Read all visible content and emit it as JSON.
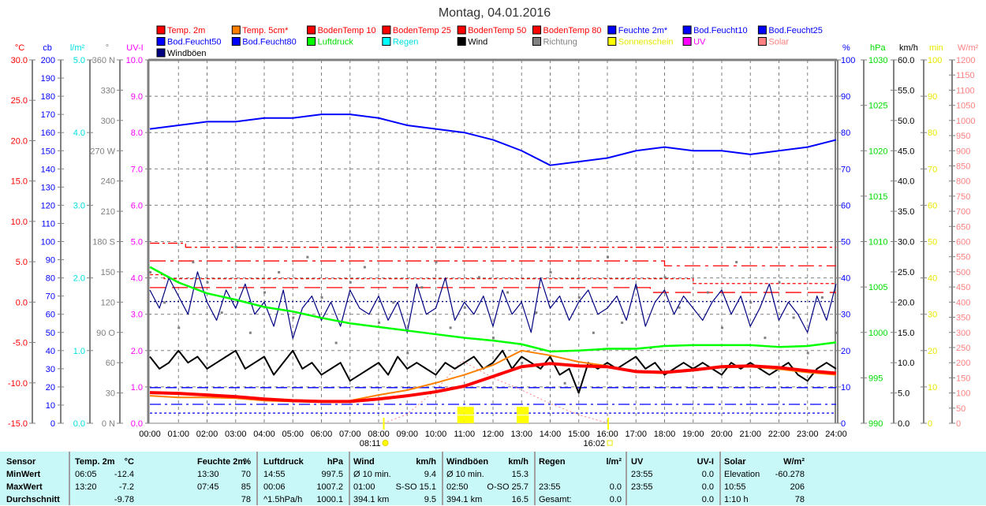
{
  "title": "Montag, 04.01.2016",
  "chart_data": {
    "type": "line",
    "title": "Montag, 04.01.2016",
    "legend": [
      {
        "label": "Temp. 2m",
        "color": "#ff0000",
        "text_color": "#ff0000"
      },
      {
        "label": "Temp. 5cm*",
        "color": "#ff8000",
        "text_color": "#ff0000"
      },
      {
        "label": "BodenTemp 10",
        "color": "#ff0000",
        "text_color": "#ff0000"
      },
      {
        "label": "BodenTemp 25",
        "color": "#ff0000",
        "text_color": "#ff0000"
      },
      {
        "label": "BodenTemp 50",
        "color": "#ff0000",
        "text_color": "#ff0000"
      },
      {
        "label": "BodenTemp 80",
        "color": "#ff0000",
        "text_color": "#ff0000"
      },
      {
        "label": "Feuchte 2m*",
        "color": "#0000ff",
        "text_color": "#0000ff"
      },
      {
        "label": "Bod.Feucht10",
        "color": "#0000ff",
        "text_color": "#0000ff"
      },
      {
        "label": "Bod.Feucht25",
        "color": "#0000ff",
        "text_color": "#0000ff"
      },
      {
        "label": "Bod.Feucht50",
        "color": "#0000ff",
        "text_color": "#0000ff"
      },
      {
        "label": "Bod.Feucht80",
        "color": "#0000ff",
        "text_color": "#0000ff"
      },
      {
        "label": "Luftdruck",
        "color": "#00ff00",
        "text_color": "#00dd00"
      },
      {
        "label": "Regen",
        "color": "#00ffff",
        "text_color": "#00e0e0"
      },
      {
        "label": "Wind",
        "color": "#000000",
        "text_color": "#000000"
      },
      {
        "label": "Richtung",
        "color": "#808080",
        "text_color": "#808080"
      },
      {
        "label": "Sonnenschein",
        "color": "#ffff00",
        "text_color": "#e8e800"
      },
      {
        "label": "UV",
        "color": "#ff00ff",
        "text_color": "#ff00ff"
      },
      {
        "label": "Solar",
        "color": "#ff8080",
        "text_color": "#ff8080"
      },
      {
        "label": "Windböen",
        "color": "#000080",
        "text_color": "#000000"
      }
    ],
    "axes_left": [
      {
        "unit": "°C",
        "color": "#ff0000",
        "min": -15,
        "max": 30,
        "ticks": [
          "30.0",
          "25.0",
          "20.0",
          "15.0",
          "10.0",
          "5.0",
          "0.0",
          "-5.0",
          "-10.0",
          "-15.0"
        ]
      },
      {
        "unit": "cb",
        "color": "#0000ff",
        "min": 0,
        "max": 200,
        "ticks": [
          "200",
          "190",
          "180",
          "170",
          "160",
          "150",
          "140",
          "130",
          "120",
          "110",
          "100",
          "90",
          "80",
          "70",
          "60",
          "50",
          "40",
          "30",
          "20",
          "10",
          "0"
        ]
      },
      {
        "unit": "l/m²",
        "color": "#00e0e0",
        "min": 0,
        "max": 5,
        "ticks": [
          "5.0",
          "4.0",
          "3.0",
          "2.0",
          "1.0",
          "0.0"
        ]
      },
      {
        "unit": "°",
        "color": "#808080",
        "min": 0,
        "max": 360,
        "ticks": [
          "360 N",
          "330",
          "300",
          "270 W",
          "240",
          "210",
          "180 S",
          "150",
          "120",
          "90  O",
          "60",
          "30",
          "0 N"
        ]
      },
      {
        "unit": "UV-I",
        "color": "#ff00ff",
        "min": 0,
        "max": 10,
        "ticks": [
          "10.0",
          "9.0",
          "8.0",
          "7.0",
          "6.0",
          "5.0",
          "4.0",
          "3.0",
          "2.0",
          "1.0",
          "0.0"
        ]
      }
    ],
    "axes_right": [
      {
        "unit": "%",
        "color": "#0000ff",
        "min": 0,
        "max": 100,
        "ticks": [
          "100",
          "90",
          "80",
          "70",
          "60",
          "50",
          "40",
          "30",
          "20",
          "10",
          "0"
        ]
      },
      {
        "unit": "hPa",
        "color": "#00dd00",
        "min": 990,
        "max": 1030,
        "ticks": [
          "1030",
          "1025",
          "1020",
          "1015",
          "1010",
          "1005",
          "1000",
          "995",
          "990"
        ]
      },
      {
        "unit": "km/h",
        "color": "#000000",
        "min": 0,
        "max": 60,
        "ticks": [
          "60.0",
          "55.0",
          "50.0",
          "45.0",
          "40.0",
          "35.0",
          "30.0",
          "25.0",
          "20.0",
          "15.0",
          "10.0",
          "5.0",
          "0.0"
        ]
      },
      {
        "unit": "min",
        "color": "#e8e800",
        "min": 0,
        "max": 100,
        "ticks": [
          "100",
          "90",
          "80",
          "70",
          "60",
          "50",
          "40",
          "30",
          "20",
          "10",
          "0"
        ]
      },
      {
        "unit": "W/m²",
        "color": "#ff8080",
        "min": 0,
        "max": 1200,
        "ticks": [
          "1200",
          "1150",
          "1100",
          "1050",
          "1000",
          "950",
          "900",
          "850",
          "800",
          "750",
          "700",
          "650",
          "600",
          "550",
          "500",
          "450",
          "400",
          "350",
          "300",
          "250",
          "200",
          "150",
          "100",
          "50",
          "0"
        ]
      }
    ],
    "x_ticks": [
      "00:00",
      "01:00",
      "02:00",
      "03:00",
      "04:00",
      "05:00",
      "06:00",
      "07:00",
      "08:00",
      "09:00",
      "10:00",
      "11:00",
      "12:00",
      "13:00",
      "14:00",
      "15:00",
      "16:00",
      "17:00",
      "18:00",
      "19:00",
      "20:00",
      "21:00",
      "22:00",
      "23:00",
      "24:00"
    ],
    "xlim": [
      0,
      24
    ],
    "sunrise": {
      "label": "08:11",
      "hour": 8.18
    },
    "sunset": {
      "label": "16:02",
      "hour": 16.03
    },
    "series": {
      "temp_2m": {
        "axis": "°C",
        "color": "#ff0000",
        "hours_step": 1,
        "values": [
          -11.2,
          -11.3,
          -11.5,
          -11.7,
          -12.0,
          -12.2,
          -12.3,
          -12.3,
          -12.0,
          -11.6,
          -11.1,
          -10.4,
          -9.2,
          -8.0,
          -7.6,
          -7.9,
          -8.0,
          -8.6,
          -8.7,
          -8.4,
          -8.0,
          -7.9,
          -8.1,
          -8.5,
          -8.8
        ]
      },
      "temp_5cm": {
        "axis": "°C",
        "color": "#ff8000",
        "hours_step": 1,
        "values": [
          -11.6,
          -11.8,
          -11.8,
          -11.9,
          -12.2,
          -12.3,
          -12.3,
          -12.2,
          -11.5,
          -10.9,
          -10.0,
          -9.0,
          -7.8,
          -6.0,
          -6.6,
          -7.4,
          -7.9,
          -8.7,
          -8.8,
          -8.5,
          -8.1,
          -8.0,
          -8.3,
          -8.7,
          -9.0
        ]
      },
      "feuchte_2m": {
        "axis": "%",
        "color": "#0000ff",
        "hours_step": 1,
        "values": [
          81,
          82,
          83,
          83,
          84,
          84,
          85,
          85,
          84,
          82,
          81,
          80,
          78,
          75,
          71,
          72,
          73,
          75,
          76,
          75,
          75,
          74,
          75,
          76,
          78
        ]
      },
      "luftdruck": {
        "axis": "hPa",
        "color": "#00ff00",
        "hours_step": 1,
        "values": [
          1007.2,
          1005.5,
          1004.3,
          1003.6,
          1002.8,
          1002.3,
          1001.6,
          1001.0,
          1000.6,
          1000.2,
          999.8,
          999.4,
          999.1,
          998.7,
          997.9,
          998.0,
          998.2,
          998.2,
          998.5,
          998.6,
          998.6,
          998.6,
          998.4,
          998.5,
          998.9
        ]
      },
      "wind": {
        "axis": "km/h",
        "color": "#000000",
        "hours_step": 0.3333,
        "values": [
          11,
          9,
          10,
          12,
          10,
          11,
          9,
          10,
          11,
          12,
          9,
          10,
          11,
          8,
          10,
          12,
          9,
          10,
          8,
          9,
          10,
          7,
          8,
          9,
          10,
          8,
          11,
          9,
          10,
          9,
          8,
          10,
          9,
          10,
          11,
          9,
          10,
          12,
          9,
          11,
          10,
          9,
          11,
          8,
          9,
          5,
          10,
          9,
          10,
          9,
          10,
          11,
          9,
          10,
          8,
          9,
          10,
          9,
          10,
          9,
          8,
          10,
          9,
          10,
          9,
          8,
          9,
          10,
          8,
          7,
          9,
          10,
          9
        ]
      },
      "windboeen": {
        "axis": "km/h",
        "color": "#000080",
        "hours_step": 0.3333,
        "values": [
          22,
          19,
          24,
          21,
          18,
          25,
          20,
          17,
          22,
          19,
          23,
          18,
          20,
          16,
          22,
          14,
          19,
          21,
          17,
          20,
          16,
          22,
          19,
          18,
          21,
          17,
          20,
          15,
          23,
          18,
          19,
          24,
          17,
          20,
          18,
          21,
          16,
          22,
          18,
          20,
          15,
          24,
          19,
          21,
          17,
          20,
          22,
          18,
          19,
          21,
          17,
          23,
          16,
          20,
          22,
          18,
          21,
          19,
          17,
          20,
          22,
          18,
          21,
          16,
          19,
          23,
          17,
          20,
          18,
          15,
          21,
          17,
          23
        ]
      },
      "richtung": {
        "axis": "°",
        "color": "#808080",
        "hours_step": 0.5,
        "values": [
          150,
          120,
          95,
          160,
          140,
          110,
          175,
          90,
          130,
          150,
          105,
          165,
          125,
          80,
          140,
          155,
          100,
          120,
          70,
          135,
          160,
          95,
          115,
          145,
          85,
          130,
          60,
          110,
          150,
          40,
          125,
          90,
          165,
          100,
          135,
          75,
          145,
          115,
          55,
          130,
          95,
          160,
          120,
          85,
          140,
          105,
          70,
          125,
          90
        ]
      },
      "solar": {
        "axis": "W/m²",
        "color": "#ff8080",
        "points": [
          [
            8.18,
            0
          ],
          [
            9,
            30
          ],
          [
            10,
            110
          ],
          [
            10.92,
            206
          ],
          [
            12,
            150
          ],
          [
            13,
            110
          ],
          [
            14,
            65
          ],
          [
            15,
            28
          ],
          [
            16.03,
            0
          ]
        ]
      },
      "sonnenschein": {
        "axis": "min",
        "color": "#ffff00",
        "bars": [
          [
            10.75,
            11.0,
            4.5
          ],
          [
            11.0,
            11.33,
            4.5
          ],
          [
            12.83,
            13.25,
            4.5
          ]
        ]
      },
      "bodentemp": {
        "axis": "°C",
        "color": "#ff0000",
        "lines": [
          {
            "name": "BodenTemp 10",
            "steps": [
              [
                0,
                7.3
              ],
              [
                1.25,
                6.8
              ],
              [
                24,
                6.8
              ]
            ]
          },
          {
            "name": "BodenTemp 25",
            "steps": [
              [
                0,
                5.1
              ],
              [
                18,
                4.5
              ],
              [
                24,
                4.5
              ]
            ]
          },
          {
            "name": "BodenTemp 50",
            "steps": [
              [
                0,
                3.4
              ],
              [
                0.5,
                2.9
              ],
              [
                19,
                2.3
              ],
              [
                24,
                2.3
              ]
            ]
          },
          {
            "name": "BodenTemp 80",
            "steps": [
              [
                0,
                1.8
              ],
              [
                17.5,
                1.2
              ],
              [
                24,
                1.2
              ]
            ]
          }
        ]
      },
      "bodfeucht": {
        "axis": "%",
        "color": "#0000ff",
        "lines": [
          {
            "name": "Bod.Feucht10",
            "value": 33.5,
            "color": "#000080"
          },
          {
            "name": "Bod.Feucht25",
            "value": 9.8,
            "color": "#0000ff"
          },
          {
            "name": "Bod.Feucht50",
            "value": 5.2,
            "color": "#0000ff"
          },
          {
            "name": "Bod.Feucht80",
            "value": 2.8,
            "color": "#0000ff"
          }
        ]
      }
    }
  },
  "stats": {
    "columns": [
      {
        "header": [
          "Sensor",
          ""
        ],
        "rows": [
          [
            "MinWert",
            ""
          ],
          [
            "MaxWert",
            ""
          ],
          [
            "Durchschnitt",
            ""
          ]
        ]
      },
      {
        "header": [
          "Temp. 2m",
          "°C"
        ],
        "rows": [
          [
            "06:05",
            "-12.4"
          ],
          [
            "13:20",
            "-7.2"
          ],
          [
            "",
            "-9.78"
          ]
        ]
      },
      {
        "header": [
          "Feuchte 2m",
          "%"
        ],
        "rows": [
          [
            "13:30",
            "70"
          ],
          [
            "07:45",
            "85"
          ],
          [
            "",
            "78"
          ]
        ]
      },
      {
        "header": [
          "Luftdruck",
          "hPa"
        ],
        "rows": [
          [
            "14:55",
            "997.5"
          ],
          [
            "00:06",
            "1007.2"
          ],
          [
            "^1.5hPa/h",
            "1000.1"
          ]
        ]
      },
      {
        "header": [
          "Wind",
          "km/h"
        ],
        "rows": [
          [
            "Ø 10 min.",
            "9.4"
          ],
          [
            "01:00",
            "S-SO 15.1"
          ],
          [
            "394.1 km",
            "9.5"
          ]
        ]
      },
      {
        "header": [
          "Windböen",
          "km/h"
        ],
        "rows": [
          [
            "Ø 10 min.",
            "15.3"
          ],
          [
            "02:50",
            "O-SO 25.7"
          ],
          [
            "394.1 km",
            "16.5"
          ]
        ]
      },
      {
        "header": [
          "Regen",
          "l/m²"
        ],
        "rows": [
          [
            "",
            ""
          ],
          [
            "23:55",
            "0.0"
          ],
          [
            "Gesamt:",
            "0.0"
          ]
        ]
      },
      {
        "header": [
          "UV",
          "UV-I"
        ],
        "rows": [
          [
            "23:55",
            "0.0"
          ],
          [
            "23:55",
            "0.0"
          ],
          [
            "",
            "0.0"
          ]
        ]
      },
      {
        "header": [
          "Solar",
          "W/m²"
        ],
        "rows": [
          [
            "Elevation",
            "-60.278"
          ],
          [
            "10:55",
            "206"
          ],
          [
            "1:10 h",
            "78"
          ]
        ]
      }
    ]
  }
}
